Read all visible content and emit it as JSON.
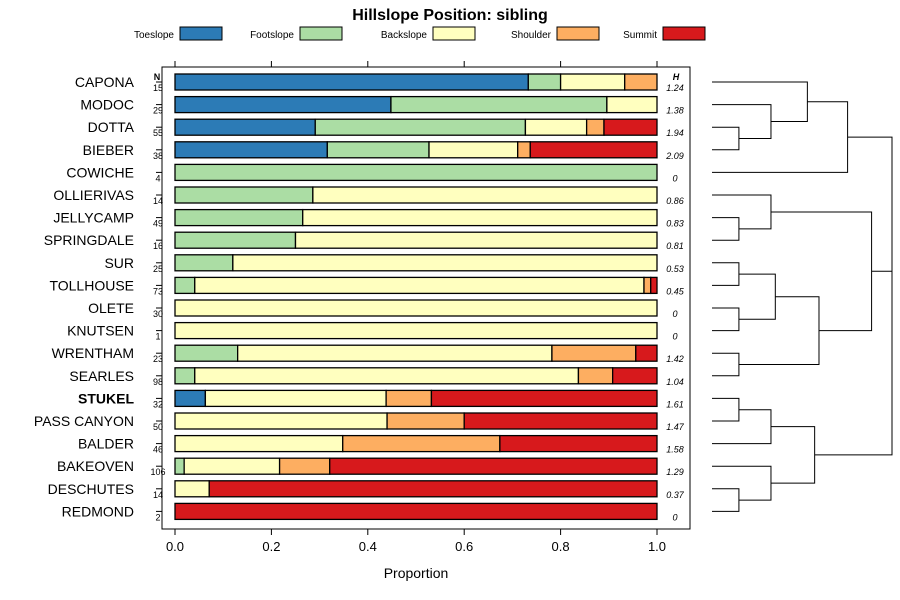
{
  "chart_data": {
    "type": "bar",
    "stacked": true,
    "orientation": "horizontal",
    "title": "Hillslope Position: sibling",
    "xlabel": "Proportion",
    "xlim": [
      0,
      1
    ],
    "x_ticks": [
      "0.0",
      "0.2",
      "0.4",
      "0.6",
      "0.8",
      "1.0"
    ],
    "n_header": "N",
    "h_header": "H",
    "highlight": "STUKEL",
    "legend_position": "top",
    "series": [
      {
        "name": "Toeslope",
        "color": "#2c7bb6"
      },
      {
        "name": "Footslope",
        "color": "#abdda4"
      },
      {
        "name": "Backslope",
        "color": "#ffffbf"
      },
      {
        "name": "Shoulder",
        "color": "#fdae61"
      },
      {
        "name": "Summit",
        "color": "#d7191c"
      }
    ],
    "rows": [
      {
        "name": "CAPONA",
        "n": "15",
        "h": "1.24",
        "values": [
          0.733,
          0.067,
          0.133,
          0.067,
          0.0
        ]
      },
      {
        "name": "MODOC",
        "n": "29",
        "h": "1.38",
        "values": [
          0.448,
          0.448,
          0.104,
          0.0,
          0.0
        ]
      },
      {
        "name": "DOTTA",
        "n": "55",
        "h": "1.94",
        "values": [
          0.291,
          0.436,
          0.127,
          0.036,
          0.11
        ]
      },
      {
        "name": "BIEBER",
        "n": "38",
        "h": "2.09",
        "values": [
          0.316,
          0.211,
          0.184,
          0.026,
          0.263
        ]
      },
      {
        "name": "COWICHE",
        "n": "4",
        "h": "0",
        "values": [
          0.0,
          1.0,
          0.0,
          0.0,
          0.0
        ]
      },
      {
        "name": "OLLIERIVAS",
        "n": "14",
        "h": "0.86",
        "values": [
          0.0,
          0.286,
          0.714,
          0.0,
          0.0
        ]
      },
      {
        "name": "JELLYCAMP",
        "n": "49",
        "h": "0.83",
        "values": [
          0.0,
          0.265,
          0.735,
          0.0,
          0.0
        ]
      },
      {
        "name": "SPRINGDALE",
        "n": "16",
        "h": "0.81",
        "values": [
          0.0,
          0.25,
          0.75,
          0.0,
          0.0
        ]
      },
      {
        "name": "SUR",
        "n": "25",
        "h": "0.53",
        "values": [
          0.0,
          0.12,
          0.88,
          0.0,
          0.0
        ]
      },
      {
        "name": "TOLLHOUSE",
        "n": "73",
        "h": "0.45",
        "values": [
          0.0,
          0.041,
          0.932,
          0.014,
          0.013
        ]
      },
      {
        "name": "OLETE",
        "n": "30",
        "h": "0",
        "values": [
          0.0,
          0.0,
          1.0,
          0.0,
          0.0
        ]
      },
      {
        "name": "KNUTSEN",
        "n": "1",
        "h": "0",
        "values": [
          0.0,
          0.0,
          1.0,
          0.0,
          0.0
        ]
      },
      {
        "name": "WRENTHAM",
        "n": "23",
        "h": "1.42",
        "values": [
          0.0,
          0.13,
          0.652,
          0.174,
          0.044
        ]
      },
      {
        "name": "SEARLES",
        "n": "98",
        "h": "1.04",
        "values": [
          0.0,
          0.041,
          0.796,
          0.071,
          0.092
        ]
      },
      {
        "name": "STUKEL",
        "n": "32",
        "h": "1.61",
        "values": [
          0.063,
          0.0,
          0.375,
          0.094,
          0.468
        ]
      },
      {
        "name": "PASS CANYON",
        "n": "50",
        "h": "1.47",
        "values": [
          0.0,
          0.0,
          0.44,
          0.16,
          0.4
        ]
      },
      {
        "name": "BALDER",
        "n": "46",
        "h": "1.58",
        "values": [
          0.0,
          0.0,
          0.348,
          0.326,
          0.326
        ]
      },
      {
        "name": "BAKEOVEN",
        "n": "106",
        "h": "1.29",
        "values": [
          0.0,
          0.019,
          0.198,
          0.104,
          0.679
        ]
      },
      {
        "name": "DESCHUTES",
        "n": "14",
        "h": "0.37",
        "values": [
          0.0,
          0.0,
          0.071,
          0.0,
          0.929
        ]
      },
      {
        "name": "REDMOND",
        "n": "2",
        "h": "0",
        "values": [
          0.0,
          0.0,
          0.0,
          0.0,
          1.0
        ]
      }
    ],
    "dendrogram": {
      "type": "hierarchical-clustering",
      "merges": [
        [
          [
            "DOTTA"
          ],
          [
            "BIEBER"
          ]
        ],
        [
          [
            "MODOC"
          ],
          [
            "DOTTA",
            "BIEBER"
          ]
        ],
        [
          [
            "CAPONA"
          ],
          [
            "MODOC",
            "DOTTA",
            "BIEBER"
          ]
        ],
        [
          [
            "JELLYCAMP"
          ],
          [
            "SPRINGDALE"
          ]
        ],
        [
          [
            "OLLIERIVAS"
          ],
          [
            "JELLYCAMP",
            "SPRINGDALE"
          ]
        ],
        [
          [
            "SUR"
          ],
          [
            "TOLLHOUSE"
          ]
        ],
        [
          [
            "OLETE"
          ],
          [
            "KNUTSEN"
          ]
        ],
        [
          [
            "SUR",
            "TOLLHOUSE"
          ],
          [
            "OLETE",
            "KNUTSEN"
          ]
        ],
        [
          [
            "WRENTHAM"
          ],
          [
            "SEARLES"
          ]
        ],
        [
          [
            "SUR",
            "TOLLHOUSE",
            "OLETE",
            "KNUTSEN"
          ],
          [
            "WRENTHAM",
            "SEARLES"
          ]
        ],
        [
          [
            "OLLIERIVAS",
            "JELLYCAMP",
            "SPRINGDALE"
          ],
          [
            "SUR",
            "TOLLHOUSE",
            "OLETE",
            "KNUTSEN",
            "WRENTHAM",
            "SEARLES"
          ]
        ],
        [
          [
            "STUKEL"
          ],
          [
            "PASS CANYON"
          ]
        ],
        [
          [
            "STUKEL",
            "PASS CANYON"
          ],
          [
            "BALDER"
          ]
        ],
        [
          [
            "DESCHUTES"
          ],
          [
            "REDMOND"
          ]
        ],
        [
          [
            "BAKEOVEN"
          ],
          [
            "DESCHUTES",
            "REDMOND"
          ]
        ],
        [
          [
            "STUKEL",
            "PASS CANYON",
            "BALDER"
          ],
          [
            "BAKEOVEN",
            "DESCHUTES",
            "REDMOND"
          ]
        ],
        [
          [
            "OLLIERIVAS",
            "JELLYCAMP",
            "SPRINGDALE",
            "SUR",
            "TOLLHOUSE",
            "OLETE",
            "KNUTSEN",
            "WRENTHAM",
            "SEARLES"
          ],
          [
            "STUKEL",
            "PASS CANYON",
            "BALDER",
            "BAKEOVEN",
            "DESCHUTES",
            "REDMOND"
          ]
        ],
        [
          [
            "CAPONA",
            "MODOC",
            "DOTTA",
            "BIEBER"
          ],
          [
            "COWICHE"
          ]
        ],
        [
          [
            "CAPONA",
            "MODOC",
            "DOTTA",
            "BIEBER",
            "COWICHE"
          ],
          [
            "OLLIERIVAS",
            "JELLYCAMP",
            "SPRINGDALE",
            "SUR",
            "TOLLHOUSE",
            "OLETE",
            "KNUTSEN",
            "WRENTHAM",
            "SEARLES",
            "STUKEL",
            "PASS CANYON",
            "BALDER",
            "BAKEOVEN",
            "DESCHUTES",
            "REDMOND"
          ]
        ]
      ]
    }
  }
}
